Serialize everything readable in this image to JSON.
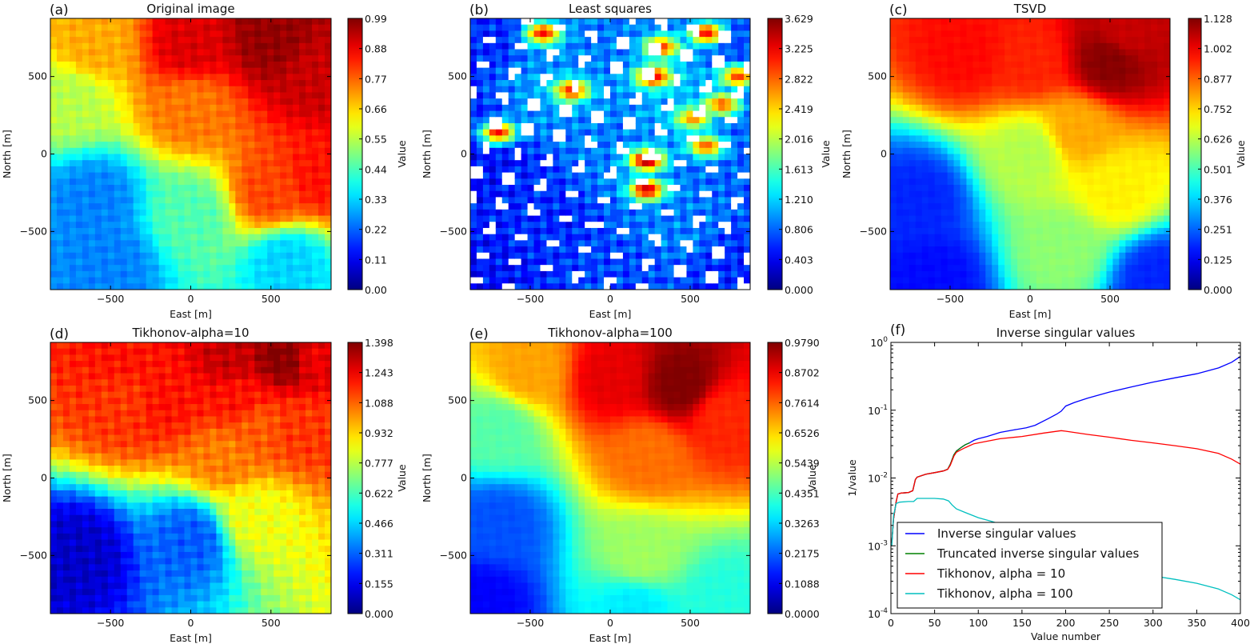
{
  "figure": {
    "panels": [
      "a",
      "b",
      "c",
      "d",
      "e",
      "f"
    ]
  },
  "chart_data": [
    {
      "id": "a",
      "type": "heatmap",
      "panel_label": "(a)",
      "title": "Original image",
      "xlabel": "East [m]",
      "ylabel": "North [m]",
      "xlim": [
        -875,
        875
      ],
      "ylim": [
        -875,
        875
      ],
      "xticks": [
        -500,
        0,
        500
      ],
      "yticks": [
        -500,
        0,
        500
      ],
      "colormap": "jet",
      "colorbar": {
        "label": "Value",
        "range": [
          0.0,
          0.99
        ],
        "ticks": [
          "0.00",
          "0.11",
          "0.22",
          "0.33",
          "0.44",
          "0.55",
          "0.66",
          "0.77",
          "0.88",
          "0.99"
        ]
      },
      "field_description": "High values (0.8-0.99) across the north (y>300); low values (0.2-0.3) in south-west; V-shaped mid-value valley; orange ridge rising from (250,-550) to (875,-100)",
      "features": [
        {
          "x": -600,
          "y": 700,
          "v": 0.7
        },
        {
          "x": 0,
          "y": 700,
          "v": 0.9
        },
        {
          "x": 500,
          "y": 750,
          "v": 0.97
        },
        {
          "x": 800,
          "y": 500,
          "v": 0.92
        },
        {
          "x": -750,
          "y": 350,
          "v": 0.55
        },
        {
          "x": 0,
          "y": 300,
          "v": 0.75
        },
        {
          "x": -600,
          "y": -300,
          "v": 0.25
        },
        {
          "x": -500,
          "y": -700,
          "v": 0.25
        },
        {
          "x": 0,
          "y": -400,
          "v": 0.45
        },
        {
          "x": 500,
          "y": -250,
          "v": 0.8
        },
        {
          "x": 800,
          "y": -150,
          "v": 0.85
        },
        {
          "x": 600,
          "y": -700,
          "v": 0.33
        }
      ]
    },
    {
      "id": "b",
      "type": "heatmap",
      "panel_label": "(b)",
      "title": "Least squares",
      "xlabel": "East [m]",
      "ylabel": "North [m]",
      "xlim": [
        -875,
        875
      ],
      "ylim": [
        -875,
        875
      ],
      "xticks": [
        -500,
        0,
        500
      ],
      "yticks": [
        -500,
        0,
        500
      ],
      "colormap": "jet",
      "colorbar": {
        "label": "Value",
        "range": [
          0.0,
          3.629
        ],
        "ticks": [
          "0.000",
          "0.403",
          "0.806",
          "1.210",
          "1.613",
          "2.016",
          "2.419",
          "2.822",
          "3.225",
          "3.629"
        ]
      },
      "field_description": "Noisy triangulated field, mostly blue (0.3-1.2) with scattered red peaks and white (masked/out-of-range) patches",
      "peaks": [
        {
          "x": -420,
          "y": 780,
          "v": 3.2
        },
        {
          "x": 600,
          "y": 780,
          "v": 3.2
        },
        {
          "x": 320,
          "y": 690,
          "v": 3.0
        },
        {
          "x": 270,
          "y": 500,
          "v": 3.3
        },
        {
          "x": 800,
          "y": 500,
          "v": 3.0
        },
        {
          "x": -240,
          "y": 410,
          "v": 3.1
        },
        {
          "x": 700,
          "y": 320,
          "v": 2.9
        },
        {
          "x": 520,
          "y": 230,
          "v": 2.7
        },
        {
          "x": -700,
          "y": 140,
          "v": 3.2
        },
        {
          "x": 600,
          "y": 50,
          "v": 2.9
        },
        {
          "x": 230,
          "y": -40,
          "v": 3.6
        },
        {
          "x": 230,
          "y": -230,
          "v": 3.4
        }
      ]
    },
    {
      "id": "c",
      "type": "heatmap",
      "panel_label": "(c)",
      "title": "TSVD",
      "xlabel": "East [m]",
      "ylabel": "North [m]",
      "xlim": [
        -875,
        875
      ],
      "ylim": [
        -875,
        875
      ],
      "xticks": [
        -500,
        0,
        500
      ],
      "yticks": [
        -500,
        0,
        500
      ],
      "colormap": "jet",
      "colorbar": {
        "label": "Value",
        "range": [
          0.0,
          1.128
        ],
        "ticks": [
          "0.000",
          "0.125",
          "0.251",
          "0.376",
          "0.501",
          "0.626",
          "0.752",
          "0.877",
          "1.002",
          "1.128"
        ]
      },
      "field_description": "Smooth field: red band (0.9-1.1) across north around y=600, max near (500,600); green/yellow center; blue south-west and south edge",
      "features": [
        {
          "x": 500,
          "y": 600,
          "v": 1.12
        },
        {
          "x": 600,
          "y": 780,
          "v": 1.05
        },
        {
          "x": -400,
          "y": 650,
          "v": 0.98
        },
        {
          "x": 0,
          "y": 600,
          "v": 0.95
        },
        {
          "x": 300,
          "y": 150,
          "v": 0.8
        },
        {
          "x": 0,
          "y": 0,
          "v": 0.62
        },
        {
          "x": -700,
          "y": -300,
          "v": 0.18
        },
        {
          "x": -600,
          "y": -800,
          "v": 0.15
        },
        {
          "x": 800,
          "y": -800,
          "v": 0.18
        },
        {
          "x": 550,
          "y": -220,
          "v": 0.72
        },
        {
          "x": 200,
          "y": -600,
          "v": 0.58
        }
      ]
    },
    {
      "id": "d",
      "type": "heatmap",
      "panel_label": "(d)",
      "title": "Tikhonov-alpha=10",
      "xlabel": "East [m]",
      "ylabel": "North [m]",
      "xlim": [
        -875,
        875
      ],
      "ylim": [
        -875,
        875
      ],
      "xticks": [
        -500,
        0,
        500
      ],
      "yticks": [
        -500,
        0,
        500
      ],
      "colormap": "jet",
      "colorbar": {
        "label": "Value",
        "range": [
          0.0,
          1.398
        ],
        "ticks": [
          "0.000",
          "0.155",
          "0.311",
          "0.466",
          "0.622",
          "0.777",
          "0.932",
          "1.088",
          "1.243",
          "1.398"
        ]
      },
      "field_description": "Blocky field: red peaks along northern rows (y≈780, 500, 330), green/cyan center, dark blue south-west",
      "features": [
        {
          "x": -420,
          "y": 780,
          "v": 1.2
        },
        {
          "x": 250,
          "y": 780,
          "v": 1.3
        },
        {
          "x": 580,
          "y": 780,
          "v": 1.39
        },
        {
          "x": 780,
          "y": 780,
          "v": 1.25
        },
        {
          "x": -420,
          "y": 500,
          "v": 1.15
        },
        {
          "x": -150,
          "y": 520,
          "v": 1.2
        },
        {
          "x": 300,
          "y": 500,
          "v": 1.2
        },
        {
          "x": 400,
          "y": 330,
          "v": 1.1
        },
        {
          "x": 700,
          "y": 330,
          "v": 1.15
        },
        {
          "x": 220,
          "y": 140,
          "v": 1.05
        },
        {
          "x": -700,
          "y": -500,
          "v": 0.1
        },
        {
          "x": 0,
          "y": -400,
          "v": 0.3
        },
        {
          "x": 400,
          "y": -250,
          "v": 0.85
        }
      ]
    },
    {
      "id": "e",
      "type": "heatmap",
      "panel_label": "(e)",
      "title": "Tikhonov-alpha=100",
      "xlabel": "East [m]",
      "ylabel": "North [m]",
      "xlim": [
        -875,
        875
      ],
      "ylim": [
        -875,
        875
      ],
      "xticks": [
        -500,
        0,
        500
      ],
      "yticks": [
        -500,
        0,
        500
      ],
      "colormap": "jet",
      "colorbar": {
        "label": "Value",
        "range": [
          0.0,
          0.979
        ],
        "ticks": [
          "0.0000",
          "0.1088",
          "0.2175",
          "0.3263",
          "0.4351",
          "0.5439",
          "0.6526",
          "0.7614",
          "0.8702",
          "0.9790"
        ]
      },
      "field_description": "Very smooth field: dark red maximum near (450,600); orange/yellow wedge narrowing south to (150,-100); green/cyan south; blue south-west",
      "features": [
        {
          "x": 450,
          "y": 600,
          "v": 0.979
        },
        {
          "x": 0,
          "y": 650,
          "v": 0.88
        },
        {
          "x": -500,
          "y": 700,
          "v": 0.7
        },
        {
          "x": 700,
          "y": 400,
          "v": 0.82
        },
        {
          "x": 250,
          "y": 150,
          "v": 0.75
        },
        {
          "x": -700,
          "y": 300,
          "v": 0.45
        },
        {
          "x": -700,
          "y": -300,
          "v": 0.2
        },
        {
          "x": -800,
          "y": -800,
          "v": 0.12
        },
        {
          "x": 200,
          "y": -500,
          "v": 0.52
        },
        {
          "x": 150,
          "y": -850,
          "v": 0.35
        },
        {
          "x": 700,
          "y": -800,
          "v": 0.4
        }
      ]
    },
    {
      "id": "f",
      "type": "line",
      "panel_label": "(f)",
      "title": "Inverse singular values",
      "xlabel": "Value number",
      "ylabel": "1/value",
      "ylabel_ghost": "Value",
      "xlim": [
        0,
        400
      ],
      "ylim": [
        0.0001,
        1
      ],
      "yscale": "log",
      "xticks": [
        "0",
        "50",
        "100",
        "150",
        "200",
        "250",
        "300",
        "350",
        "400"
      ],
      "yticks": [
        {
          "base": "10",
          "exp": "0",
          "value": 1
        },
        {
          "base": "10",
          "exp": "-1",
          "value": 0.1
        },
        {
          "base": "10",
          "exp": "-2",
          "value": 0.01
        },
        {
          "base": "10",
          "exp": "-3",
          "value": 0.001
        },
        {
          "base": "10",
          "exp": "-4",
          "value": 0.0001
        }
      ],
      "legend_position": "lower-left",
      "series": [
        {
          "name": "Inverse singular values",
          "color": "#0000ff",
          "x": [
            1,
            3,
            6,
            8,
            12,
            20,
            25,
            28,
            30,
            40,
            50,
            60,
            65,
            68,
            72,
            75,
            80,
            85,
            90,
            95,
            100,
            110,
            125,
            140,
            155,
            165,
            180,
            190,
            195,
            200,
            210,
            225,
            250,
            275,
            300,
            325,
            350,
            375,
            390,
            400
          ],
          "y": [
            0.0011,
            0.0025,
            0.0045,
            0.0058,
            0.006,
            0.0061,
            0.0065,
            0.0095,
            0.0103,
            0.0114,
            0.012,
            0.0127,
            0.0135,
            0.016,
            0.022,
            0.025,
            0.028,
            0.031,
            0.033,
            0.036,
            0.038,
            0.041,
            0.047,
            0.051,
            0.055,
            0.06,
            0.075,
            0.088,
            0.097,
            0.115,
            0.13,
            0.15,
            0.185,
            0.22,
            0.26,
            0.3,
            0.345,
            0.42,
            0.51,
            0.62
          ]
        },
        {
          "name": "Truncated inverse singular values",
          "color": "#008000",
          "x": [
            1,
            3,
            6,
            8,
            12,
            20,
            25,
            28,
            30,
            40,
            50,
            60,
            65,
            68,
            72,
            75,
            80,
            85,
            90
          ],
          "y": [
            0.0011,
            0.0025,
            0.0045,
            0.0058,
            0.006,
            0.0061,
            0.0065,
            0.0095,
            0.0103,
            0.0114,
            0.012,
            0.0127,
            0.0135,
            0.016,
            0.022,
            0.025,
            0.028,
            0.031,
            0.033
          ]
        },
        {
          "name": "Tikhonov, alpha = 10",
          "color": "#ff0000",
          "x": [
            1,
            3,
            6,
            8,
            12,
            20,
            25,
            28,
            30,
            40,
            50,
            60,
            65,
            68,
            72,
            75,
            80,
            85,
            90,
            95,
            100,
            125,
            150,
            175,
            195,
            200,
            225,
            250,
            275,
            300,
            325,
            350,
            375,
            390,
            400
          ],
          "y": [
            0.0011,
            0.0025,
            0.0045,
            0.0058,
            0.006,
            0.0061,
            0.0065,
            0.0095,
            0.0103,
            0.0114,
            0.012,
            0.0127,
            0.0134,
            0.0155,
            0.021,
            0.024,
            0.026,
            0.028,
            0.03,
            0.032,
            0.033,
            0.038,
            0.041,
            0.046,
            0.05,
            0.049,
            0.044,
            0.04,
            0.036,
            0.033,
            0.03,
            0.027,
            0.023,
            0.019,
            0.016
          ]
        },
        {
          "name": "Tikhonov, alpha = 100",
          "color": "#00bfbf",
          "x": [
            1,
            3,
            6,
            10,
            20,
            26,
            30,
            40,
            50,
            60,
            66,
            70,
            75,
            85,
            100,
            115,
            130,
            150,
            175,
            200,
            225,
            250,
            275,
            300,
            325,
            350,
            375,
            390,
            400
          ],
          "y": [
            0.001,
            0.0028,
            0.0042,
            0.0044,
            0.0045,
            0.0045,
            0.005,
            0.005,
            0.005,
            0.0049,
            0.0046,
            0.004,
            0.0035,
            0.0031,
            0.0026,
            0.0023,
            0.002,
            0.0016,
            0.0012,
            0.00085,
            0.0006,
            0.00048,
            0.00041,
            0.00036,
            0.00032,
            0.00028,
            0.00023,
            0.00019,
            0.00016
          ]
        }
      ]
    }
  ]
}
